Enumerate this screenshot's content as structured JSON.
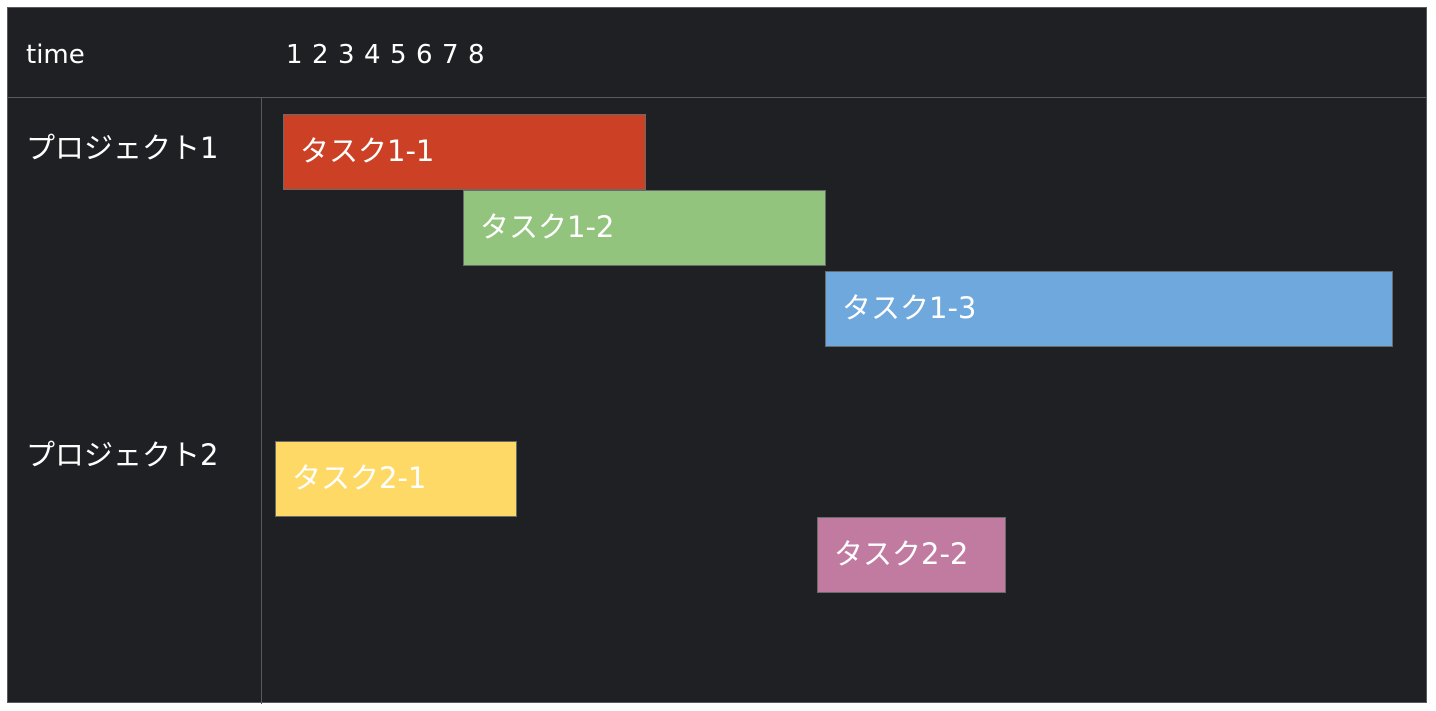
{
  "header": {
    "time_label": "time",
    "ticks": [
      "1",
      "2",
      "3",
      "4",
      "5",
      "6",
      "7",
      "8"
    ]
  },
  "projects": [
    {
      "label": "プロジェクト1",
      "tasks": [
        {
          "label": "タスク1-1",
          "color": "#cc4125"
        },
        {
          "label": "タスク1-2",
          "color": "#93c47d"
        },
        {
          "label": "タスク1-3",
          "color": "#6fa8dc"
        }
      ]
    },
    {
      "label": "プロジェクト2",
      "tasks": [
        {
          "label": "タスク2-1",
          "color": "#ffd966"
        },
        {
          "label": "タスク2-2",
          "color": "#c27ba0"
        }
      ]
    }
  ]
}
